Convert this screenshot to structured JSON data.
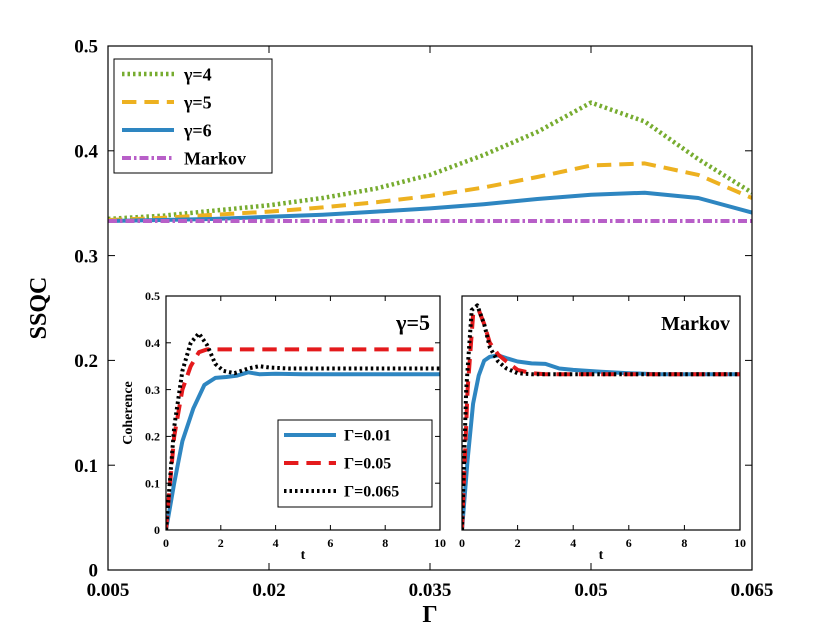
{
  "chart_data": [
    {
      "type": "line",
      "role": "main",
      "xlabel": "Γ",
      "ylabel": "SSQC",
      "xlim": [
        0.005,
        0.065
      ],
      "ylim": [
        0,
        0.5
      ],
      "xticks": [
        0.005,
        0.02,
        0.035,
        0.05,
        0.065
      ],
      "xtick_labels": [
        "0.005",
        "0.02",
        "0.035",
        "0.05",
        "0.065"
      ],
      "yticks": [
        0,
        0.1,
        0.2,
        0.3,
        0.4,
        0.5
      ],
      "ytick_labels": [
        "0",
        "0.1",
        "0.2",
        "0.3",
        "0.4",
        "0.5"
      ],
      "legend_position": "top-left",
      "series": [
        {
          "name": "γ=4",
          "color": "#77ac30",
          "dash": "dotted",
          "x": [
            0.005,
            0.01,
            0.015,
            0.02,
            0.025,
            0.03,
            0.035,
            0.04,
            0.045,
            0.05,
            0.055,
            0.06,
            0.065
          ],
          "y": [
            0.335,
            0.338,
            0.343,
            0.348,
            0.355,
            0.364,
            0.377,
            0.396,
            0.418,
            0.446,
            0.428,
            0.392,
            0.36
          ]
        },
        {
          "name": "γ=5",
          "color": "#edb120",
          "dash": "dashed",
          "x": [
            0.005,
            0.01,
            0.015,
            0.02,
            0.025,
            0.03,
            0.035,
            0.04,
            0.045,
            0.05,
            0.055,
            0.06,
            0.065
          ],
          "y": [
            0.334,
            0.336,
            0.339,
            0.342,
            0.346,
            0.351,
            0.357,
            0.365,
            0.375,
            0.386,
            0.388,
            0.377,
            0.355
          ]
        },
        {
          "name": "γ=6",
          "color": "#2e86c1",
          "dash": "solid",
          "x": [
            0.005,
            0.01,
            0.015,
            0.02,
            0.025,
            0.03,
            0.035,
            0.04,
            0.045,
            0.05,
            0.055,
            0.06,
            0.065
          ],
          "y": [
            0.333,
            0.334,
            0.335,
            0.337,
            0.339,
            0.342,
            0.345,
            0.349,
            0.354,
            0.358,
            0.36,
            0.355,
            0.341
          ]
        },
        {
          "name": "Markov",
          "color": "#b85fc8",
          "dash": "dashdot",
          "x": [
            0.005,
            0.065
          ],
          "y": [
            0.333,
            0.333
          ]
        }
      ]
    },
    {
      "type": "line",
      "role": "inset-left",
      "title": "γ=5",
      "xlabel": "t",
      "ylabel": "Coherence",
      "xlim": [
        0,
        10
      ],
      "ylim": [
        0,
        0.5
      ],
      "xticks": [
        0,
        2,
        4,
        6,
        8,
        10
      ],
      "xtick_labels": [
        "0",
        "2",
        "4",
        "6",
        "8",
        "10"
      ],
      "yticks": [
        0,
        0.1,
        0.2,
        0.3,
        0.4,
        0.5
      ],
      "ytick_labels": [
        "0",
        "0.1",
        "0.2",
        "0.3",
        "0.4",
        "0.5"
      ],
      "legend_position": "bottom-right",
      "series": [
        {
          "name": "Γ=0.01",
          "color": "#2e86c1",
          "dash": "solid",
          "x": [
            0,
            0.3,
            0.6,
            1.0,
            1.4,
            1.8,
            2.2,
            2.6,
            3.0,
            3.4,
            4.0,
            5.0,
            6.0,
            8.0,
            10.0
          ],
          "y": [
            0,
            0.1,
            0.19,
            0.26,
            0.31,
            0.325,
            0.327,
            0.33,
            0.337,
            0.333,
            0.334,
            0.333,
            0.333,
            0.333,
            0.333
          ]
        },
        {
          "name": "Γ=0.05",
          "color": "#e41a1c",
          "dash": "dashed",
          "x": [
            0,
            0.3,
            0.6,
            0.9,
            1.2,
            1.5,
            2.0,
            3.0,
            5.0,
            10.0
          ],
          "y": [
            0,
            0.2,
            0.3,
            0.35,
            0.38,
            0.386,
            0.386,
            0.386,
            0.386,
            0.386
          ]
        },
        {
          "name": "Γ=0.065",
          "color": "#000000",
          "dash": "dotted",
          "x": [
            0,
            0.3,
            0.6,
            0.9,
            1.2,
            1.5,
            1.8,
            2.1,
            2.5,
            3.0,
            3.4,
            3.8,
            4.5,
            6.0,
            10.0
          ],
          "y": [
            0,
            0.22,
            0.34,
            0.4,
            0.42,
            0.395,
            0.355,
            0.34,
            0.335,
            0.345,
            0.35,
            0.347,
            0.345,
            0.345,
            0.345
          ]
        }
      ]
    },
    {
      "type": "line",
      "role": "inset-right",
      "title": "Markov",
      "xlabel": "t",
      "xlim": [
        0,
        10
      ],
      "ylim": [
        0,
        0.5
      ],
      "xticks": [
        0,
        2,
        4,
        6,
        8,
        10
      ],
      "xtick_labels": [
        "0",
        "2",
        "4",
        "6",
        "8",
        "10"
      ],
      "series": [
        {
          "name": "Γ=0.01",
          "color": "#2e86c1",
          "dash": "solid",
          "x": [
            0,
            0.2,
            0.4,
            0.6,
            0.8,
            1.0,
            1.3,
            1.6,
            2.0,
            2.5,
            3.0,
            3.5,
            4.0,
            5.0,
            6.0,
            7.0,
            10.0
          ],
          "y": [
            0,
            0.15,
            0.27,
            0.33,
            0.362,
            0.37,
            0.373,
            0.367,
            0.36,
            0.356,
            0.355,
            0.345,
            0.342,
            0.338,
            0.335,
            0.333,
            0.333
          ]
        },
        {
          "name": "Γ=0.05",
          "color": "#e41a1c",
          "dash": "dashed",
          "x": [
            0,
            0.2,
            0.4,
            0.6,
            0.8,
            1.0,
            1.3,
            1.6,
            2.0,
            2.5,
            3.0,
            10.0
          ],
          "y": [
            0,
            0.3,
            0.46,
            0.47,
            0.44,
            0.4,
            0.375,
            0.36,
            0.342,
            0.335,
            0.333,
            0.333
          ]
        },
        {
          "name": "Γ=0.065",
          "color": "#000000",
          "dash": "dotted",
          "x": [
            0,
            0.15,
            0.35,
            0.55,
            0.8,
            1.0,
            1.3,
            1.6,
            2.0,
            2.5,
            3.0,
            10.0
          ],
          "y": [
            0,
            0.3,
            0.47,
            0.48,
            0.44,
            0.39,
            0.36,
            0.345,
            0.335,
            0.333,
            0.333,
            0.333
          ]
        }
      ]
    }
  ]
}
